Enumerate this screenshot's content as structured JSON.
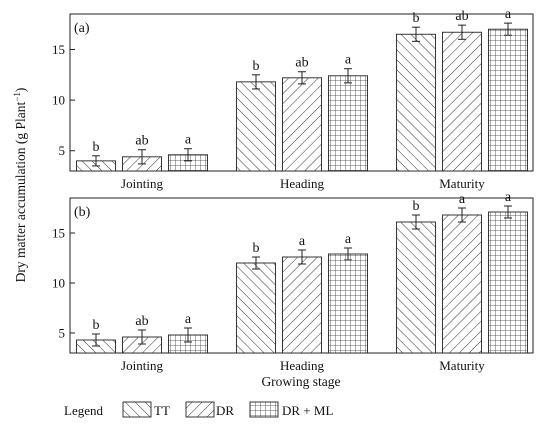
{
  "chart_data": [
    {
      "type": "bar",
      "panel_label": "(a)",
      "categories": [
        "Jointing",
        "Heading",
        "Maturity"
      ],
      "ylim": [
        3,
        18.5
      ],
      "yticks": [
        5,
        10,
        15
      ],
      "series": [
        {
          "name": "TT",
          "values": [
            4.0,
            11.8,
            16.5
          ],
          "errors": [
            0.5,
            0.7,
            0.7
          ],
          "letters": [
            "b",
            "b",
            "b"
          ]
        },
        {
          "name": "DR",
          "values": [
            4.4,
            12.2,
            16.7
          ],
          "errors": [
            0.7,
            0.6,
            0.7
          ],
          "letters": [
            "ab",
            "ab",
            "ab"
          ]
        },
        {
          "name": "DR + ML",
          "values": [
            4.6,
            12.4,
            17.0
          ],
          "errors": [
            0.6,
            0.7,
            0.6
          ],
          "letters": [
            "a",
            "a",
            "a"
          ]
        }
      ]
    },
    {
      "type": "bar",
      "panel_label": "(b)",
      "categories": [
        "Jointing",
        "Heading",
        "Maturity"
      ],
      "ylim": [
        3,
        18.5
      ],
      "yticks": [
        5,
        10,
        15
      ],
      "series": [
        {
          "name": "TT",
          "values": [
            4.3,
            12.0,
            16.1
          ],
          "errors": [
            0.6,
            0.6,
            0.7
          ],
          "letters": [
            "b",
            "b",
            "b"
          ]
        },
        {
          "name": "DR",
          "values": [
            4.6,
            12.6,
            16.8
          ],
          "errors": [
            0.7,
            0.7,
            0.7
          ],
          "letters": [
            "ab",
            "a",
            "a"
          ]
        },
        {
          "name": "DR + ML",
          "values": [
            4.8,
            12.9,
            17.1
          ],
          "errors": [
            0.7,
            0.6,
            0.6
          ],
          "letters": [
            "a",
            "a",
            "a"
          ]
        }
      ]
    }
  ],
  "axes": {
    "ylabel": "Dry matter accumulation (g Plant",
    "ylabel_sup": "−1",
    "ylabel_close": ")",
    "xlabel": "Growing stage"
  },
  "legend": {
    "title": "Legend",
    "items": [
      {
        "label": "TT",
        "pattern": "diag-right"
      },
      {
        "label": "DR",
        "pattern": "diag-left"
      },
      {
        "label": "DR + ML",
        "pattern": "grid"
      }
    ]
  }
}
